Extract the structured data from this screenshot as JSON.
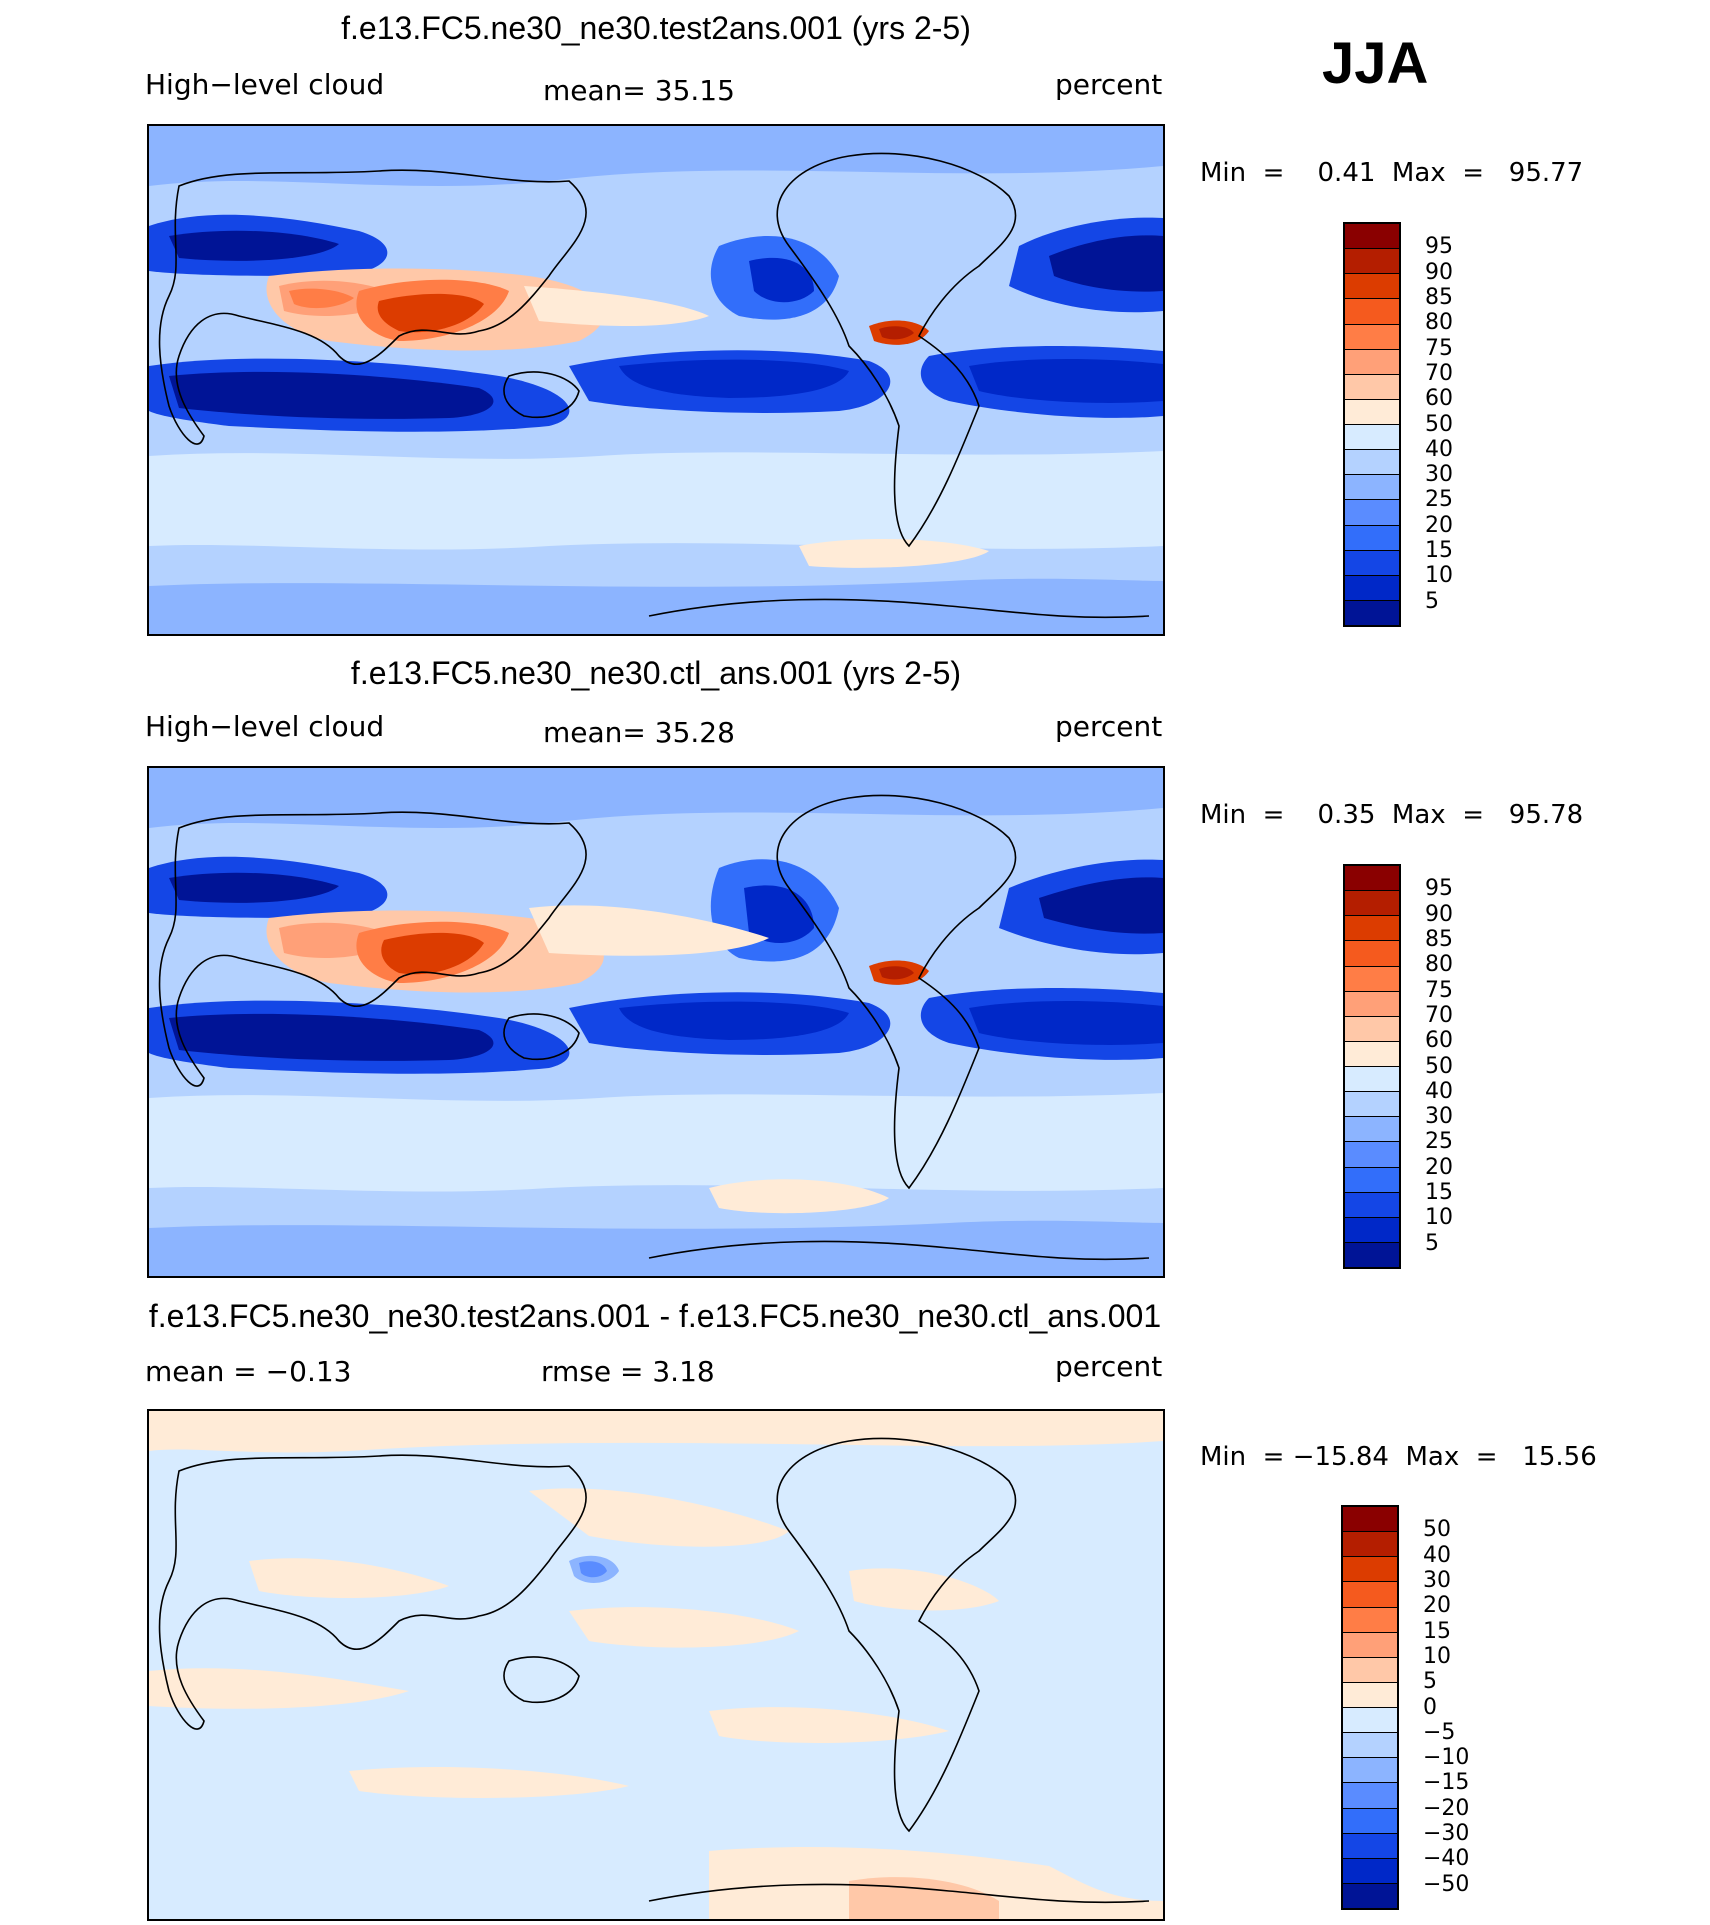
{
  "season": "JJA",
  "panels": [
    {
      "title": "f.e13.FC5.ne30_ne30.test2ans.001 (yrs 2-5)",
      "left_label": "High−level cloud",
      "center_label": "mean=   35.15",
      "right_label": "percent",
      "minmax": "Min  =    0.41  Max  =   95.77",
      "kind": "field"
    },
    {
      "title": "f.e13.FC5.ne30_ne30.ctl_ans.001 (yrs 2-5)",
      "left_label": "High−level cloud",
      "center_label": "mean=   35.28",
      "right_label": "percent",
      "minmax": "Min  =    0.35  Max  =   95.78",
      "kind": "field"
    },
    {
      "title": "f.e13.FC5.ne30_ne30.test2ans.001 - f.e13.FC5.ne30_ne30.ctl_ans.001",
      "left_label": "mean  =   −0.13",
      "center_label": "rmse  =     3.18",
      "right_label": "percent",
      "minmax": "Min  = −15.84  Max  =   15.56",
      "kind": "diff"
    }
  ],
  "colorbar_field": {
    "labels": [
      "95",
      "90",
      "85",
      "80",
      "75",
      "70",
      "60",
      "50",
      "40",
      "30",
      "25",
      "20",
      "15",
      "10",
      "5"
    ],
    "colors": [
      "#8a0000",
      "#b41e00",
      "#dc3c00",
      "#f55a1e",
      "#ff7d46",
      "#ffa078",
      "#ffc8a8",
      "#ffebd7",
      "#d7ebff",
      "#b4d2ff",
      "#8cb4ff",
      "#5a8cff",
      "#326efa",
      "#1446e6",
      "#0028c8",
      "#001496"
    ]
  },
  "colorbar_diff": {
    "labels": [
      "50",
      "40",
      "30",
      "20",
      "15",
      "10",
      "5",
      "0",
      "−5",
      "−10",
      "−15",
      "−20",
      "−30",
      "−40",
      "−50"
    ],
    "colors": [
      "#8a0000",
      "#b41e00",
      "#dc3c00",
      "#f55a1e",
      "#ff7d46",
      "#ffa078",
      "#ffc8a8",
      "#ffebd7",
      "#d7ebff",
      "#b4d2ff",
      "#8cb4ff",
      "#5a8cff",
      "#326efa",
      "#1446e6",
      "#0028c8",
      "#001496"
    ]
  }
}
